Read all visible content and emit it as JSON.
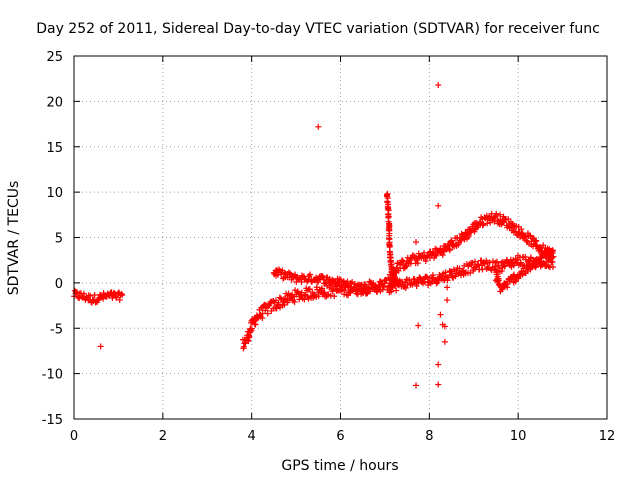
{
  "chart_data": {
    "type": "scatter",
    "title": "Day 252 of 2011, Sidereal Day-to-day VTEC variation (SDTVAR) for receiver func",
    "xlabel": "GPS time / hours",
    "ylabel": "SDTVAR / TECUs",
    "xlim": [
      0,
      12
    ],
    "ylim": [
      -15,
      25
    ],
    "xticks": [
      0,
      2,
      4,
      6,
      8,
      10,
      12
    ],
    "yticks": [
      -15,
      -10,
      -5,
      0,
      5,
      10,
      15,
      20,
      25
    ],
    "xtick_labels": [
      "0",
      "2",
      "4",
      "6",
      "8",
      "10",
      "12"
    ],
    "ytick_labels": [
      "-15",
      "-10",
      "-5",
      "0",
      "5",
      "10",
      "15",
      "20",
      "25"
    ],
    "grid": true,
    "marker": "+",
    "color": "#ff0000",
    "series": [
      {
        "name": "SDTVAR",
        "segments": [
          {
            "x": [
              0.0,
              0.2,
              0.4,
              0.6,
              0.8,
              1.0,
              1.1
            ],
            "y": [
              -1.3,
              -1.5,
              -1.8,
              -1.6,
              -1.4,
              -1.5,
              -1.3
            ],
            "spread": 0.9
          },
          {
            "x": [
              3.8,
              3.9,
              4.0,
              4.1,
              4.3,
              4.6,
              5.0,
              5.5,
              6.0,
              6.5,
              7.0,
              7.2
            ],
            "y": [
              -6.8,
              -6.2,
              -4.8,
              -3.8,
              -3.0,
              -2.2,
              -1.4,
              -1.0,
              -0.8,
              -0.6,
              -0.2,
              0.0
            ],
            "spread": 1.3
          },
          {
            "x": [
              4.5,
              5.0,
              5.5,
              6.0,
              6.5,
              7.0
            ],
            "y": [
              1.2,
              0.5,
              0.5,
              0.0,
              -0.5,
              -0.6
            ],
            "spread": 0.9
          },
          {
            "x": [
              7.1,
              7.3,
              7.6,
              8.0,
              8.4,
              8.8,
              9.1,
              9.3,
              9.5,
              9.8,
              10.2,
              10.5,
              10.8
            ],
            "y": [
              0.5,
              1.8,
              2.5,
              3.0,
              3.8,
              5.2,
              6.5,
              7.1,
              7.2,
              6.5,
              5.0,
              3.8,
              3.0
            ],
            "spread": 1.1
          },
          {
            "x": [
              7.1,
              7.5,
              8.0,
              8.4,
              8.8,
              9.2,
              9.6,
              10.0,
              10.4,
              10.8
            ],
            "y": [
              -0.5,
              0.0,
              0.3,
              0.8,
              1.5,
              2.0,
              1.8,
              2.5,
              2.2,
              2.0
            ],
            "spread": 1.1
          },
          {
            "x": [
              9.5,
              9.6,
              9.7,
              9.9,
              10.2,
              10.5,
              10.8
            ],
            "y": [
              0.8,
              -0.6,
              -0.3,
              0.5,
              1.5,
              2.5,
              4.0
            ],
            "spread": 1.0
          },
          {
            "x": [
              7.05,
              7.08,
              7.1,
              7.12,
              7.15,
              7.2,
              7.3
            ],
            "y": [
              10.0,
              7.5,
              5.0,
              3.0,
              1.5,
              0.5,
              0.0
            ],
            "spread": 0.5
          }
        ],
        "outliers": {
          "x": [
            0.6,
            5.5,
            7.7,
            7.75,
            8.2,
            8.2,
            8.25,
            8.3,
            8.35,
            8.35,
            8.4,
            8.4,
            8.2,
            8.2
          ],
          "y": [
            -7.0,
            17.2,
            4.5,
            -4.7,
            21.8,
            8.5,
            -3.5,
            -4.6,
            -4.8,
            -6.5,
            -1.9,
            -0.5,
            -9.0,
            -11.2
          ]
        },
        "extra_outliers": {
          "x": [
            7.7
          ],
          "y": [
            -11.3
          ]
        }
      }
    ]
  }
}
